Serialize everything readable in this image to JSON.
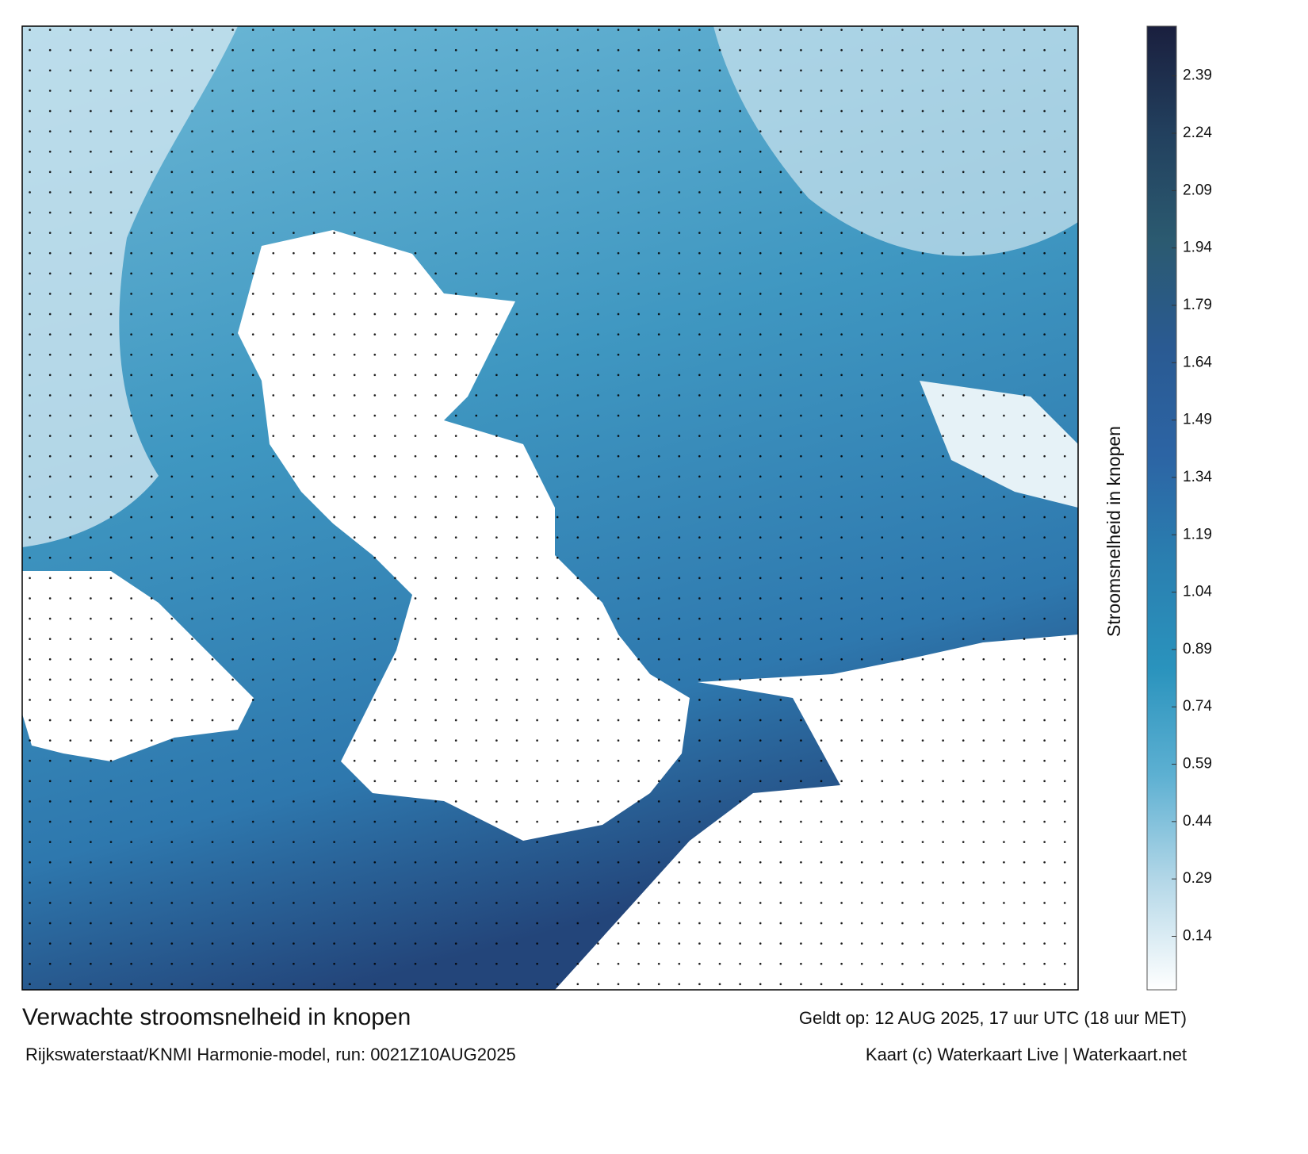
{
  "chart_data": {
    "type": "colorbar",
    "title": "Verwachte stroomsnelheid in knopen",
    "valid_time": "Geldt op: 12 AUG 2025, 17 uur UTC (18 uur MET)",
    "source": "Rijkswaterstaat/KNMI Harmonie-model, run: 0021Z10AUG2025",
    "credit": "Kaart (c) Waterkaart Live | Waterkaart.net",
    "colorbar_label": "Stroomsnelheid in knopen",
    "clim": [
      0,
      2.52
    ],
    "ticks": [
      0.14,
      0.29,
      0.44,
      0.59,
      0.74,
      0.89,
      1.04,
      1.19,
      1.34,
      1.49,
      1.64,
      1.79,
      1.94,
      2.09,
      2.24,
      2.39
    ],
    "colors": [
      "#ffffff",
      "#b5d8e8",
      "#5db0d2",
      "#2a93bd",
      "#2a7fb0",
      "#2c64a4",
      "#2a5a92",
      "#2b5a70",
      "#22405e",
      "#1a1f3e"
    ]
  }
}
